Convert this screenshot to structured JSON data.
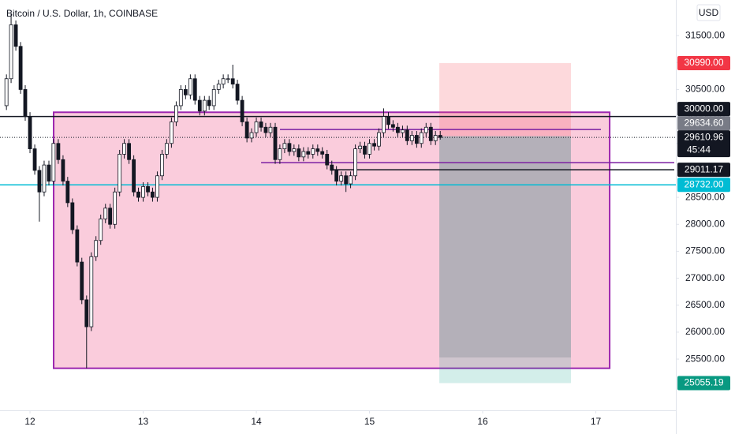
{
  "chart_data": {
    "type": "candlestick",
    "title": "Bitcoin / U.S. Dollar, 1h, COINBASE",
    "currency": "USD",
    "bull_color": "#ffffff",
    "bear_color": "#131722",
    "x": [
      11.792,
      11.833,
      11.875,
      11.917,
      11.958,
      12,
      12.042,
      12.083,
      12.125,
      12.167,
      12.208,
      12.25,
      12.292,
      12.333,
      12.375,
      12.417,
      12.458,
      12.5,
      12.542,
      12.583,
      12.625,
      12.667,
      12.708,
      12.75,
      12.792,
      12.833,
      12.875,
      12.917,
      12.958,
      13,
      13.042,
      13.083,
      13.125,
      13.167,
      13.208,
      13.25,
      13.292,
      13.333,
      13.375,
      13.417,
      13.458,
      13.5,
      13.542,
      13.583,
      13.625,
      13.667,
      13.708,
      13.75,
      13.792,
      13.833,
      13.875,
      13.917,
      13.958,
      14,
      14.042,
      14.083,
      14.125,
      14.167,
      14.208,
      14.25,
      14.292,
      14.333,
      14.375,
      14.417,
      14.458,
      14.5,
      14.542,
      14.583,
      14.625,
      14.667,
      14.708,
      14.75,
      14.792,
      14.833,
      14.875,
      14.917,
      14.958,
      15,
      15.042,
      15.083,
      15.125,
      15.167,
      15.208,
      15.25,
      15.292,
      15.333,
      15.375,
      15.417,
      15.458,
      15.5,
      15.542,
      15.583,
      15.625
    ],
    "open": [
      30200,
      30700,
      31700,
      31300,
      30500,
      30000,
      29400,
      29000,
      28600,
      29100,
      28800,
      29500,
      29200,
      28800,
      28400,
      27900,
      27300,
      26600,
      26100,
      27400,
      27700,
      28100,
      28300,
      28000,
      28600,
      29300,
      29500,
      29200,
      28600,
      28500,
      28700,
      28600,
      28500,
      28900,
      29300,
      29500,
      29900,
      30200,
      30500,
      30400,
      30700,
      30300,
      30100,
      30300,
      30200,
      30500,
      30600,
      30700,
      30700,
      30600,
      30300,
      29900,
      29600,
      29700,
      29900,
      29800,
      29700,
      29800,
      29200,
      29400,
      29500,
      29350,
      29400,
      29250,
      29350,
      29300,
      29400,
      29350,
      29300,
      29100,
      29000,
      28800,
      28900,
      28750,
      28900,
      29400,
      29450,
      29300,
      29500,
      29450,
      29700,
      30000,
      29850,
      29800,
      29700,
      29750,
      29550,
      29650,
      29500,
      29700,
      29800,
      29550,
      29650
    ],
    "high": [
      30780,
      31900,
      31780,
      31380,
      30580,
      30080,
      29480,
      29080,
      29180,
      29180,
      29580,
      29580,
      29280,
      28880,
      28480,
      27980,
      27380,
      26680,
      27480,
      27780,
      28180,
      28380,
      28380,
      28680,
      29380,
      29580,
      29580,
      29280,
      28680,
      28780,
      28780,
      28680,
      28980,
      29380,
      29580,
      29980,
      30280,
      30580,
      30580,
      30780,
      30780,
      30380,
      30380,
      30380,
      30580,
      30680,
      30780,
      30780,
      30960,
      30680,
      30380,
      29980,
      29780,
      29980,
      29980,
      29880,
      29880,
      29880,
      29480,
      29580,
      29580,
      29480,
      29480,
      29430,
      29430,
      29480,
      29480,
      29430,
      29380,
      29180,
      29080,
      28980,
      28980,
      28980,
      29480,
      29530,
      29530,
      29580,
      29580,
      29780,
      30150,
      30080,
      29930,
      29880,
      29830,
      29830,
      29730,
      29730,
      29780,
      29880,
      29880,
      29730,
      29730
    ],
    "low": [
      30120,
      30620,
      31220,
      30420,
      29920,
      29320,
      28920,
      28050,
      28520,
      28720,
      28720,
      29120,
      28720,
      28320,
      27820,
      27220,
      26520,
      25330,
      26020,
      27320,
      27620,
      28020,
      27920,
      27920,
      28520,
      29220,
      29120,
      28520,
      28420,
      28420,
      28520,
      28420,
      28420,
      28820,
      29220,
      29420,
      29820,
      30120,
      30320,
      30320,
      30220,
      30020,
      30020,
      30120,
      30120,
      30420,
      30520,
      30620,
      30520,
      30220,
      29820,
      29520,
      29520,
      29620,
      29720,
      29620,
      29620,
      29120,
      29120,
      29320,
      29270,
      29270,
      29170,
      29170,
      29220,
      29220,
      29270,
      29220,
      29020,
      28920,
      28720,
      28720,
      28600,
      28670,
      28820,
      29320,
      29220,
      29220,
      29370,
      29370,
      29620,
      29770,
      29720,
      29620,
      29620,
      29470,
      29470,
      29420,
      29420,
      29620,
      29470,
      29470,
      29570
    ],
    "close": [
      30700,
      31700,
      31300,
      30500,
      30000,
      29400,
      29000,
      28600,
      29100,
      28800,
      29500,
      29200,
      28800,
      28400,
      27900,
      27300,
      26600,
      26100,
      27400,
      27700,
      28100,
      28300,
      28000,
      28600,
      29300,
      29500,
      29200,
      28600,
      28500,
      28700,
      28600,
      28500,
      28900,
      29300,
      29500,
      29900,
      30200,
      30500,
      30400,
      30700,
      30300,
      30100,
      30300,
      30200,
      30500,
      30600,
      30700,
      30700,
      30600,
      30300,
      29900,
      29600,
      29700,
      29900,
      29800,
      29700,
      29800,
      29200,
      29400,
      29500,
      29350,
      29400,
      29250,
      29350,
      29300,
      29400,
      29350,
      29300,
      29100,
      29000,
      28800,
      28900,
      28750,
      28900,
      29400,
      29450,
      29300,
      29500,
      29450,
      29700,
      30000,
      29850,
      29800,
      29700,
      29750,
      29550,
      29650,
      29500,
      29700,
      29800,
      29550,
      29650,
      29610.96
    ],
    "xlim": [
      11.735,
      17.707
    ],
    "ylim": [
      24550,
      32160
    ],
    "xticks": [
      12,
      13,
      14,
      15,
      16,
      17
    ],
    "yticks": [
      {
        "value": 25500,
        "label": "25500.00"
      },
      {
        "value": 26000,
        "label": "26000.00"
      },
      {
        "value": 26500,
        "label": "26500.00"
      },
      {
        "value": 27000,
        "label": "27000.00"
      },
      {
        "value": 27500,
        "label": "27500.00"
      },
      {
        "value": 28000,
        "label": "28000.00"
      },
      {
        "value": 28500,
        "label": "28500.00"
      },
      {
        "value": 29000,
        "label": "29000.00"
      },
      {
        "value": 29500,
        "label": "29500.00"
      },
      {
        "value": 30000,
        "label": "30000.00"
      },
      {
        "value": 30500,
        "label": "30500.00"
      },
      {
        "value": 31000,
        "label": "31000.00"
      },
      {
        "value": 31500,
        "label": "31500.00"
      }
    ],
    "rectangle": {
      "x": [
        12.209,
        17.122
      ],
      "y": [
        25330,
        30078
      ],
      "color": "#9c27b0",
      "fill": "#f8bbd0"
    },
    "position": {
      "x": [
        15.617,
        16.78
      ],
      "entry": 29634.6,
      "stop": 30990,
      "target": 25055.19,
      "shade": 25530
    },
    "hlines": [
      {
        "value": 30000,
        "color": "#131722",
        "style": "solid"
      },
      {
        "value": 28732,
        "color": "#00bcd4",
        "style": "solid"
      },
      {
        "value": 29610.96,
        "color": "#131722",
        "style": "dotted"
      }
    ],
    "segments": [
      {
        "x": [
          14.209,
          17.045
        ],
        "value": 29758,
        "color": "#7b1fa2"
      },
      {
        "x": [
          14.042,
          17.693
        ],
        "value": 29143,
        "color": "#7b1fa2"
      },
      {
        "x": [
          14.662,
          17.693
        ],
        "value": 29011.17,
        "color": "#131722"
      }
    ],
    "price_labels": [
      {
        "value": 30990,
        "label": "30990.00",
        "color": "#f23645"
      },
      {
        "value": 30000,
        "label": "30000.00",
        "color": "#131722"
      },
      {
        "value": 29634.6,
        "label": "29634.60",
        "color": "#787b86"
      },
      {
        "value": 29610.96,
        "label": "29610.96",
        "color": "#131722"
      },
      {
        "value": 29011.17,
        "label": "29011.17",
        "color": "#131722"
      },
      {
        "value": 28732,
        "label": "28732.00",
        "color": "#00bcd4"
      },
      {
        "value": 25055.19,
        "label": "25055.19",
        "color": "#089981"
      }
    ],
    "countdown": "45:44"
  }
}
